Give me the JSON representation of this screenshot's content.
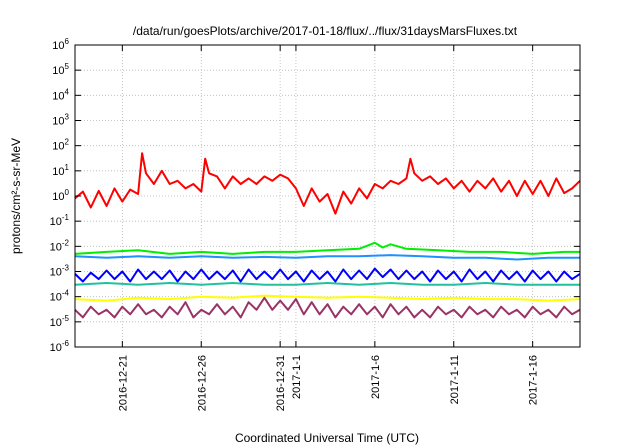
{
  "chart_data": {
    "type": "line",
    "title": "/data/run/goesPlots/archive/2017-01-18/flux/../flux/31daysMarsFluxes.txt",
    "xlabel": "Coordinated Universal Time (UTC)",
    "ylabel": "protons/cm²-s-sr-MeV",
    "yscale": "log",
    "ylim": [
      1e-06,
      1000000.0
    ],
    "xlim": [
      "2016-12-18",
      "2017-01-19"
    ],
    "grid": true,
    "y_ticks": [
      {
        "value": 1e-06,
        "base": "10",
        "exp": "-6"
      },
      {
        "value": 1e-05,
        "base": "10",
        "exp": "-5"
      },
      {
        "value": 0.0001,
        "base": "10",
        "exp": "-4"
      },
      {
        "value": 0.001,
        "base": "10",
        "exp": "-3"
      },
      {
        "value": 0.01,
        "base": "10",
        "exp": "-2"
      },
      {
        "value": 0.1,
        "base": "10",
        "exp": "-1"
      },
      {
        "value": 1,
        "base": "10",
        "exp": "0"
      },
      {
        "value": 10,
        "base": "10",
        "exp": "1"
      },
      {
        "value": 100,
        "base": "10",
        "exp": "2"
      },
      {
        "value": 1000,
        "base": "10",
        "exp": "3"
      },
      {
        "value": 10000,
        "base": "10",
        "exp": "4"
      },
      {
        "value": 100000,
        "base": "10",
        "exp": "5"
      },
      {
        "value": 1000000,
        "base": "10",
        "exp": "6"
      }
    ],
    "x_ticks": [
      {
        "date": "2016-12-21",
        "label": "2016-12-21"
      },
      {
        "date": "2016-12-26",
        "label": "2016-12-26"
      },
      {
        "date": "2016-12-31",
        "label": "2016-12-31"
      },
      {
        "date": "2017-01-01",
        "label": "2017-1-1"
      },
      {
        "date": "2017-01-06",
        "label": "2017-1-6"
      },
      {
        "date": "2017-01-11",
        "label": "2017-1-11"
      },
      {
        "date": "2017-01-16",
        "label": "2017-1-16"
      }
    ],
    "series": [
      {
        "color": "#ff0000",
        "x": [
          "2016-12-18",
          "2016-12-18T12:00",
          "2016-12-19",
          "2016-12-19T12:00",
          "2016-12-20",
          "2016-12-20T12:00",
          "2016-12-21",
          "2016-12-21T12:00",
          "2016-12-22",
          "2016-12-22T06:00",
          "2016-12-22T12:00",
          "2016-12-23",
          "2016-12-23T12:00",
          "2016-12-24",
          "2016-12-24T12:00",
          "2016-12-25",
          "2016-12-25T12:00",
          "2016-12-26",
          "2016-12-26T06:00",
          "2016-12-26T12:00",
          "2016-12-27",
          "2016-12-27T12:00",
          "2016-12-28",
          "2016-12-28T12:00",
          "2016-12-29",
          "2016-12-29T12:00",
          "2016-12-30",
          "2016-12-30T12:00",
          "2016-12-31",
          "2016-12-31T12:00",
          "2017-01-01",
          "2017-01-01T12:00",
          "2017-01-02",
          "2017-01-02T12:00",
          "2017-01-03",
          "2017-01-03T12:00",
          "2017-01-04",
          "2017-01-04T12:00",
          "2017-01-05",
          "2017-01-05T12:00",
          "2017-01-06",
          "2017-01-06T12:00",
          "2017-01-07",
          "2017-01-07T12:00",
          "2017-01-08",
          "2017-01-08T06:00",
          "2017-01-08T12:00",
          "2017-01-09",
          "2017-01-09T12:00",
          "2017-01-10",
          "2017-01-10T12:00",
          "2017-01-11",
          "2017-01-11T12:00",
          "2017-01-12",
          "2017-01-12T12:00",
          "2017-01-13",
          "2017-01-13T12:00",
          "2017-01-14",
          "2017-01-14T12:00",
          "2017-01-15",
          "2017-01-15T12:00",
          "2017-01-16",
          "2017-01-16T12:00",
          "2017-01-17",
          "2017-01-17T12:00",
          "2017-01-18",
          "2017-01-18T12:00",
          "2017-01-19"
        ],
        "values": [
          0.8,
          1.5,
          0.35,
          1.6,
          0.4,
          2.0,
          0.6,
          1.8,
          1.2,
          50,
          8,
          3,
          10,
          3,
          4,
          2,
          3,
          1.5,
          30,
          8,
          6,
          2,
          6,
          3,
          5,
          3,
          6,
          4,
          7,
          5,
          2,
          0.4,
          2,
          0.6,
          1.2,
          0.2,
          1.5,
          0.5,
          2,
          0.8,
          3,
          2,
          4,
          3,
          5,
          30,
          8,
          4,
          6,
          3,
          5,
          2,
          4,
          1.5,
          4,
          2,
          5,
          1.5,
          4,
          1,
          4,
          1.2,
          4,
          1,
          5,
          1.3,
          2,
          4
        ]
      },
      {
        "color": "#00ee00",
        "x": [
          "2016-12-18",
          "2016-12-20",
          "2016-12-22",
          "2016-12-24",
          "2016-12-26",
          "2016-12-28",
          "2016-12-30",
          "2017-01-01",
          "2017-01-03",
          "2017-01-05",
          "2017-01-05T18:00",
          "2017-01-06",
          "2017-01-06T12:00",
          "2017-01-07",
          "2017-01-08",
          "2017-01-10",
          "2017-01-12",
          "2017-01-14",
          "2017-01-16",
          "2017-01-18",
          "2017-01-19"
        ],
        "values": [
          0.005,
          0.006,
          0.007,
          0.005,
          0.006,
          0.005,
          0.006,
          0.006,
          0.007,
          0.008,
          0.012,
          0.014,
          0.009,
          0.012,
          0.008,
          0.007,
          0.006,
          0.006,
          0.005,
          0.006,
          0.006
        ]
      },
      {
        "color": "#1e90ff",
        "x": [
          "2016-12-18",
          "2016-12-20",
          "2016-12-22",
          "2016-12-24",
          "2016-12-26",
          "2016-12-28",
          "2016-12-30",
          "2017-01-01",
          "2017-01-03",
          "2017-01-05",
          "2017-01-07",
          "2017-01-09",
          "2017-01-11",
          "2017-01-13",
          "2017-01-15",
          "2017-01-17",
          "2017-01-19"
        ],
        "values": [
          0.004,
          0.0035,
          0.004,
          0.0035,
          0.004,
          0.0035,
          0.0038,
          0.0035,
          0.004,
          0.004,
          0.0045,
          0.004,
          0.0035,
          0.0035,
          0.003,
          0.0035,
          0.0035
        ]
      },
      {
        "color": "#0000ff",
        "x": [
          "2016-12-18",
          "2016-12-18T12:00",
          "2016-12-19",
          "2016-12-19T12:00",
          "2016-12-20",
          "2016-12-20T12:00",
          "2016-12-21",
          "2016-12-21T12:00",
          "2016-12-22",
          "2016-12-22T12:00",
          "2016-12-23",
          "2016-12-23T12:00",
          "2016-12-24",
          "2016-12-24T12:00",
          "2016-12-25",
          "2016-12-25T12:00",
          "2016-12-26",
          "2016-12-26T12:00",
          "2016-12-27",
          "2016-12-27T12:00",
          "2016-12-28",
          "2016-12-28T12:00",
          "2016-12-29",
          "2016-12-29T12:00",
          "2016-12-30",
          "2016-12-30T12:00",
          "2016-12-31",
          "2016-12-31T12:00",
          "2017-01-01",
          "2017-01-01T12:00",
          "2017-01-02",
          "2017-01-02T12:00",
          "2017-01-03",
          "2017-01-03T12:00",
          "2017-01-04",
          "2017-01-04T12:00",
          "2017-01-05",
          "2017-01-05T12:00",
          "2017-01-06",
          "2017-01-06T12:00",
          "2017-01-07",
          "2017-01-07T12:00",
          "2017-01-08",
          "2017-01-08T12:00",
          "2017-01-09",
          "2017-01-09T12:00",
          "2017-01-10",
          "2017-01-10T12:00",
          "2017-01-11",
          "2017-01-11T12:00",
          "2017-01-12",
          "2017-01-12T12:00",
          "2017-01-13",
          "2017-01-13T12:00",
          "2017-01-14",
          "2017-01-14T12:00",
          "2017-01-15",
          "2017-01-15T12:00",
          "2017-01-16",
          "2017-01-16T12:00",
          "2017-01-17",
          "2017-01-17T12:00",
          "2017-01-18",
          "2017-01-18T12:00",
          "2017-01-19"
        ],
        "values": [
          0.0008,
          0.0004,
          0.0009,
          0.0005,
          0.0011,
          0.0005,
          0.001,
          0.0004,
          0.0012,
          0.0005,
          0.001,
          0.0005,
          0.0011,
          0.0004,
          0.001,
          0.0005,
          0.0012,
          0.0005,
          0.001,
          0.0005,
          0.0011,
          0.0004,
          0.0012,
          0.0005,
          0.001,
          0.0005,
          0.0012,
          0.0005,
          0.001,
          0.0004,
          0.0011,
          0.0005,
          0.001,
          0.0004,
          0.0012,
          0.0005,
          0.0011,
          0.0005,
          0.0013,
          0.0006,
          0.0012,
          0.0005,
          0.0011,
          0.0005,
          0.001,
          0.0004,
          0.0011,
          0.0005,
          0.001,
          0.0004,
          0.0012,
          0.0005,
          0.001,
          0.0004,
          0.0011,
          0.0005,
          0.001,
          0.0004,
          0.0011,
          0.0005,
          0.001,
          0.0004,
          0.001,
          0.0005,
          0.0008
        ]
      },
      {
        "color": "#20c0a0",
        "x": [
          "2016-12-18",
          "2016-12-20",
          "2016-12-22",
          "2016-12-24",
          "2016-12-26",
          "2016-12-28",
          "2016-12-30",
          "2017-01-01",
          "2017-01-03",
          "2017-01-05",
          "2017-01-07",
          "2017-01-09",
          "2017-01-11",
          "2017-01-13",
          "2017-01-15",
          "2017-01-17",
          "2017-01-19"
        ],
        "values": [
          0.0003,
          0.00035,
          0.0003,
          0.00035,
          0.0003,
          0.00035,
          0.0003,
          0.0003,
          0.00035,
          0.0003,
          0.00035,
          0.0003,
          0.0003,
          0.00035,
          0.0003,
          0.0003,
          0.0003
        ]
      },
      {
        "color": "#ffff00",
        "x": [
          "2016-12-18",
          "2016-12-20",
          "2016-12-22",
          "2016-12-24",
          "2016-12-26",
          "2016-12-28",
          "2016-12-30",
          "2017-01-01",
          "2017-01-03",
          "2017-01-05",
          "2017-01-07",
          "2017-01-09",
          "2017-01-11",
          "2017-01-13",
          "2017-01-15",
          "2017-01-17",
          "2017-01-19"
        ],
        "values": [
          8e-05,
          7e-05,
          9e-05,
          8e-05,
          0.0001,
          9e-05,
          0.00011,
          0.0001,
          9e-05,
          0.0001,
          9e-05,
          8e-05,
          9e-05,
          8e-05,
          8e-05,
          7e-05,
          8e-05
        ]
      },
      {
        "color": "#993366",
        "x": [
          "2016-12-18",
          "2016-12-18T12:00",
          "2016-12-19",
          "2016-12-19T12:00",
          "2016-12-20",
          "2016-12-20T12:00",
          "2016-12-21",
          "2016-12-21T12:00",
          "2016-12-22",
          "2016-12-22T12:00",
          "2016-12-23",
          "2016-12-23T12:00",
          "2016-12-24",
          "2016-12-24T12:00",
          "2016-12-25",
          "2016-12-25T12:00",
          "2016-12-26",
          "2016-12-26T12:00",
          "2016-12-27",
          "2016-12-27T12:00",
          "2016-12-28",
          "2016-12-28T12:00",
          "2016-12-29",
          "2016-12-29T12:00",
          "2016-12-30",
          "2016-12-30T12:00",
          "2016-12-31",
          "2016-12-31T12:00",
          "2017-01-01",
          "2017-01-01T12:00",
          "2017-01-02",
          "2017-01-02T12:00",
          "2017-01-03",
          "2017-01-03T12:00",
          "2017-01-04",
          "2017-01-04T12:00",
          "2017-01-05",
          "2017-01-05T12:00",
          "2017-01-06",
          "2017-01-06T12:00",
          "2017-01-07",
          "2017-01-07T12:00",
          "2017-01-08",
          "2017-01-08T12:00",
          "2017-01-09",
          "2017-01-09T12:00",
          "2017-01-10",
          "2017-01-10T12:00",
          "2017-01-11",
          "2017-01-11T12:00",
          "2017-01-12",
          "2017-01-12T12:00",
          "2017-01-13",
          "2017-01-13T12:00",
          "2017-01-14",
          "2017-01-14T12:00",
          "2017-01-15",
          "2017-01-15T12:00",
          "2017-01-16",
          "2017-01-16T12:00",
          "2017-01-17",
          "2017-01-17T12:00",
          "2017-01-18",
          "2017-01-18T12:00",
          "2017-01-19"
        ],
        "values": [
          3e-05,
          1.5e-05,
          4e-05,
          2e-05,
          3e-05,
          1.5e-05,
          4e-05,
          2e-05,
          5e-05,
          2e-05,
          3e-05,
          1.5e-05,
          4e-05,
          2e-05,
          6e-05,
          1.5e-05,
          3e-05,
          2e-05,
          5e-05,
          2e-05,
          4e-05,
          1.5e-05,
          6e-05,
          3e-05,
          9e-05,
          3e-05,
          7e-05,
          3e-05,
          8e-05,
          2e-05,
          6e-05,
          2e-05,
          5e-05,
          1.5e-05,
          4e-05,
          2e-05,
          5e-05,
          2e-05,
          4e-05,
          1.5e-05,
          5e-05,
          2e-05,
          4e-05,
          1.5e-05,
          3e-05,
          1.5e-05,
          4e-05,
          2e-05,
          3e-05,
          1.5e-05,
          4e-05,
          2e-05,
          3e-05,
          1.5e-05,
          4e-05,
          2e-05,
          3e-05,
          1.5e-05,
          4e-05,
          2e-05,
          3e-05,
          1.5e-05,
          4e-05,
          2e-05,
          3e-05
        ]
      }
    ]
  }
}
